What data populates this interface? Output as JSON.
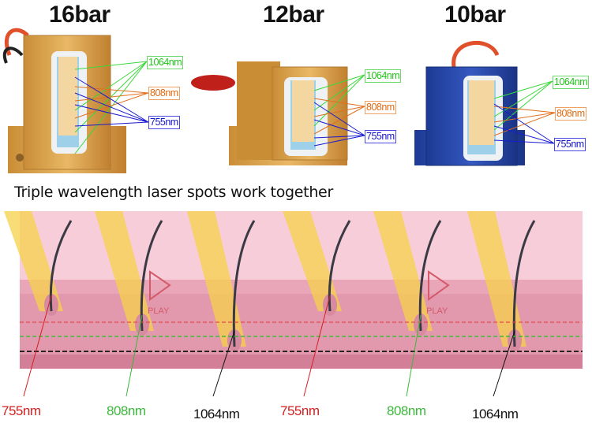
{
  "modules": [
    {
      "title": "16bar",
      "body_color": "#d9a24a",
      "labels": {
        "l1064": "1064nm",
        "l808": "808nm",
        "l755": "755nm"
      }
    },
    {
      "title": "12bar",
      "body_color": "#d9a24a",
      "labels": {
        "l1064": "1064nm",
        "l808": "808nm",
        "l755": "755nm"
      }
    },
    {
      "title": "10bar",
      "body_color": "#2a48a8",
      "labels": {
        "l1064": "1064nm",
        "l808": "808nm",
        "l755": "755nm"
      }
    }
  ],
  "subtitle": "Triple wavelength laser spots work together",
  "diagram": {
    "play_label": "PLAY",
    "labels": [
      "755nm",
      "808nm",
      "1064nm",
      "755nm",
      "808nm",
      "1064nm"
    ],
    "colors": {
      "755nm": "#d42020",
      "808nm": "#3cb83c",
      "1064nm": "#111111"
    }
  }
}
